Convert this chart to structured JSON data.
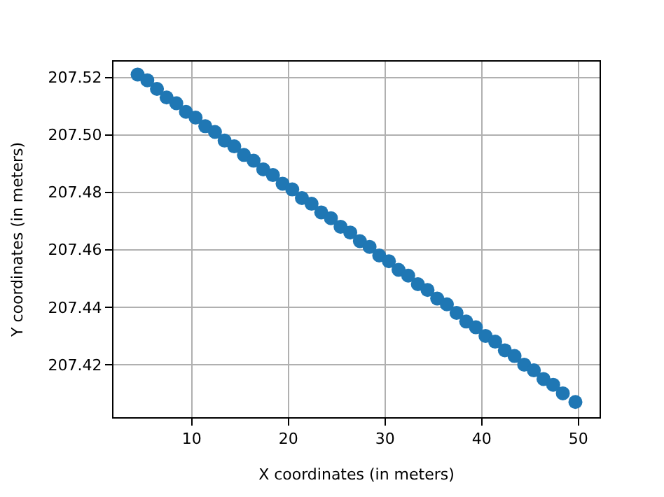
{
  "chart_data": {
    "type": "scatter",
    "xlabel": "X coordinates (in meters)",
    "ylabel": "Y coordinates (in meters)",
    "x": [
      4.4,
      5.4,
      6.4,
      7.4,
      8.4,
      9.4,
      10.4,
      11.4,
      12.4,
      13.4,
      14.4,
      15.4,
      16.4,
      17.4,
      18.4,
      19.4,
      20.4,
      21.4,
      22.4,
      23.4,
      24.4,
      25.4,
      26.4,
      27.4,
      28.4,
      29.4,
      30.4,
      31.4,
      32.4,
      33.4,
      34.4,
      35.4,
      36.4,
      37.4,
      38.4,
      39.4,
      40.4,
      41.4,
      42.4,
      43.4,
      44.4,
      45.4,
      46.4,
      47.4,
      48.4,
      49.7
    ],
    "series": [
      {
        "color": "#1f77b4",
        "values": [
          207.521,
          207.519,
          207.516,
          207.513,
          207.511,
          207.508,
          207.506,
          207.503,
          207.501,
          207.498,
          207.496,
          207.493,
          207.491,
          207.488,
          207.486,
          207.483,
          207.481,
          207.478,
          207.476,
          207.473,
          207.471,
          207.468,
          207.466,
          207.463,
          207.461,
          207.458,
          207.456,
          207.453,
          207.451,
          207.448,
          207.446,
          207.443,
          207.441,
          207.438,
          207.435,
          207.433,
          207.43,
          207.428,
          207.425,
          207.423,
          207.42,
          207.418,
          207.415,
          207.413,
          207.41,
          207.407
        ]
      }
    ],
    "xlim": [
      1.9,
      52.2
    ],
    "xticks": [
      10,
      20,
      30,
      40,
      50
    ],
    "ylim": [
      207.4017,
      207.5255
    ],
    "yticks": [
      {
        "value": 207.42,
        "label": "207.42"
      },
      {
        "value": 207.44,
        "label": "207.44"
      },
      {
        "value": 207.46,
        "label": "207.46"
      },
      {
        "value": 207.48,
        "label": "207.48"
      },
      {
        "value": 207.5,
        "label": "207.50"
      },
      {
        "value": 207.52,
        "label": "207.52"
      }
    ],
    "grid": true,
    "marker": "circle"
  }
}
